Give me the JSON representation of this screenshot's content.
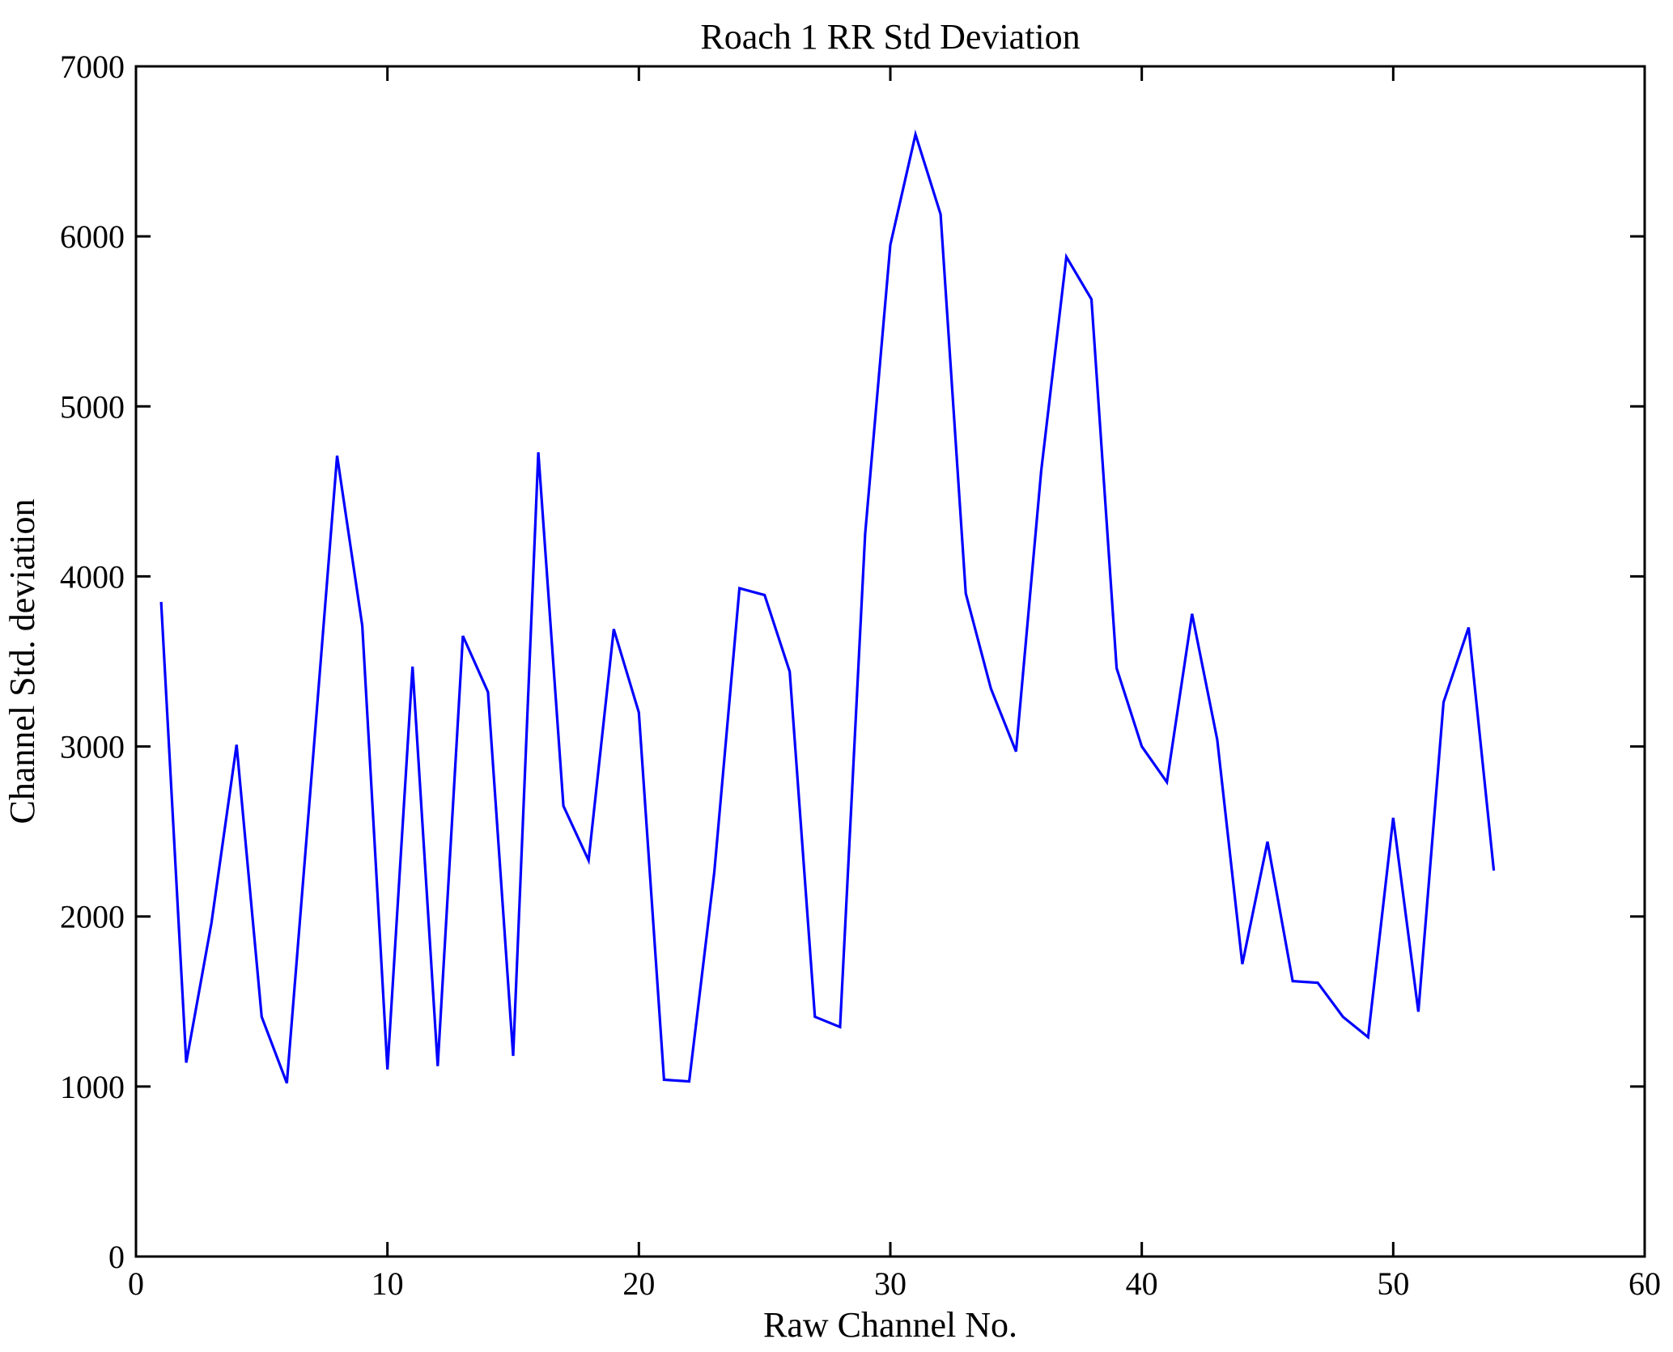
{
  "figure": {
    "title": "Roach 1 RR Std Deviation",
    "xlabel": "Raw Channel No.",
    "ylabel": "Channel Std. deviation",
    "background_color": "#ffffff",
    "axis_color": "#000000"
  },
  "chart_data": {
    "type": "line",
    "title": "Roach 1 RR Std Deviation",
    "xlabel": "Raw Channel No.",
    "ylabel": "Channel Std. deviation",
    "line_color": "#0000ff",
    "grid": false,
    "legend": "none",
    "box": true,
    "xlim": [
      0,
      60
    ],
    "ylim": [
      0,
      7000
    ],
    "x_ticks": [
      0,
      10,
      20,
      30,
      40,
      50,
      60
    ],
    "y_ticks": [
      0,
      1000,
      2000,
      3000,
      4000,
      5000,
      6000,
      7000
    ],
    "x": [
      1,
      2,
      3,
      4,
      5,
      6,
      7,
      8,
      9,
      10,
      11,
      12,
      13,
      14,
      15,
      16,
      17,
      18,
      19,
      20,
      21,
      22,
      23,
      24,
      25,
      26,
      27,
      28,
      29,
      30,
      31,
      32,
      33,
      34,
      35,
      36,
      37,
      38,
      39,
      40,
      41,
      42,
      43,
      44,
      45,
      46,
      47,
      48,
      49,
      50,
      51,
      52,
      53,
      54
    ],
    "y": [
      3850,
      1140,
      1960,
      3010,
      1410,
      1020,
      2860,
      4710,
      3710,
      1100,
      3470,
      1120,
      3650,
      3320,
      1180,
      4730,
      2650,
      2330,
      3690,
      3200,
      1040,
      1030,
      2260,
      3930,
      3890,
      3440,
      1410,
      1350,
      4250,
      5950,
      6600,
      6130,
      3900,
      3340,
      2970,
      4620,
      5880,
      5630,
      3460,
      3000,
      2790,
      3780,
      3040,
      1720,
      2440,
      1620,
      1610,
      1410,
      1290,
      2580,
      1440,
      3260,
      3700,
      2270
    ]
  }
}
